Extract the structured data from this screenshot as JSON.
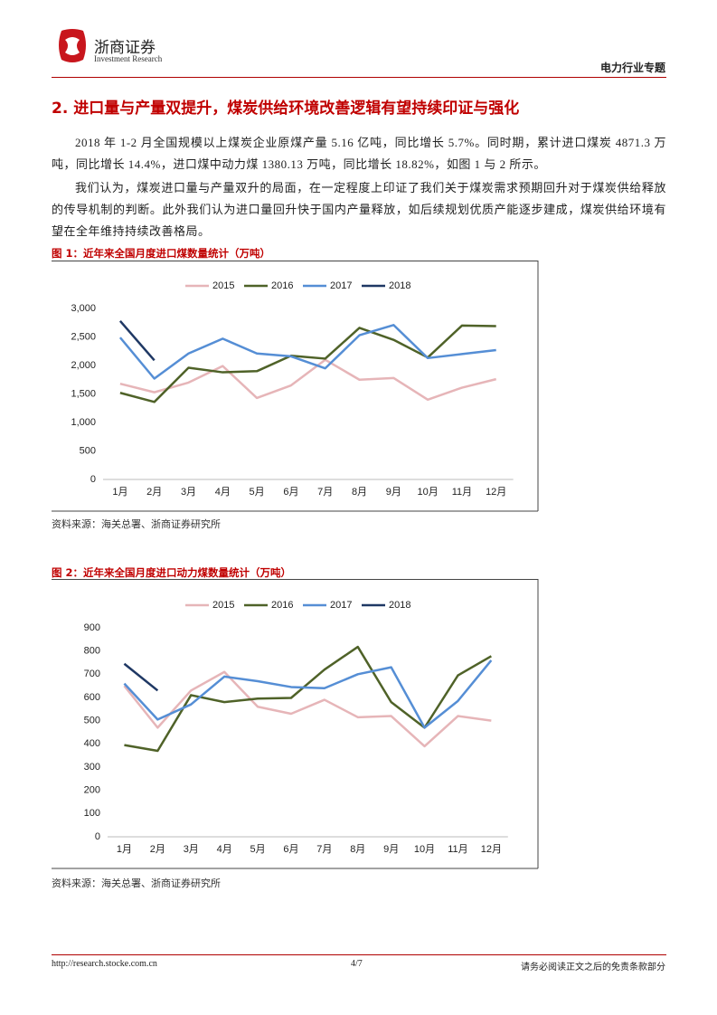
{
  "header": {
    "brand": "浙商证券",
    "brand_en": "Investment Research",
    "report_type": "电力行业专题"
  },
  "section_title": "2. 进口量与产量双提升，煤炭供给环境改善逻辑有望持续印证与强化",
  "paragraphs": [
    "2018 年 1-2 月全国规模以上煤炭企业原煤产量 5.16 亿吨，同比增长 5.7%。同时期，累计进口煤炭 4871.3 万吨，同比增长 14.4%，进口煤中动力煤 1380.13 万吨，同比增长 18.82%，如图 1 与 2 所示。",
    "我们认为，煤炭进口量与产量双升的局面，在一定程度上印证了我们关于煤炭需求预期回升对于煤炭供给释放的传导机制的判断。此外我们认为进口量回升快于国内产量释放，如后续规划优质产能逐步建成，煤炭供给环境有望在全年维持持续改善格局。"
  ],
  "chart_data": [
    {
      "type": "line",
      "title": "图 1：近年来全国月度进口煤数量统计（万吨）",
      "source": "资料来源：海关总署、浙商证券研究所",
      "categories": [
        "1月",
        "2月",
        "3月",
        "4月",
        "5月",
        "6月",
        "7月",
        "8月",
        "9月",
        "10月",
        "11月",
        "12月"
      ],
      "series": [
        {
          "name": "2015",
          "color": "#e6b5b8",
          "values": [
            1680,
            1530,
            1700,
            1990,
            1430,
            1650,
            2100,
            1750,
            1780,
            1400,
            1610,
            1760
          ]
        },
        {
          "name": "2016",
          "color": "#4f6228",
          "values": [
            1520,
            1360,
            1960,
            1880,
            1900,
            2170,
            2120,
            2660,
            2450,
            2140,
            2700,
            2690
          ]
        },
        {
          "name": "2017",
          "color": "#558ed5",
          "values": [
            2490,
            1770,
            2210,
            2470,
            2210,
            2160,
            1950,
            2530,
            2710,
            2130,
            2200,
            2270
          ]
        },
        {
          "name": "2018",
          "color": "#1f3864",
          "values": [
            2780,
            2090,
            null,
            null,
            null,
            null,
            null,
            null,
            null,
            null,
            null,
            null
          ]
        }
      ],
      "ylim": [
        0,
        3000
      ],
      "yticks": [
        0,
        500,
        {
          "value": 1000,
          "label": "1,000"
        },
        {
          "value": 1500,
          "label": "1,500"
        },
        {
          "value": 2000,
          "label": "2,000"
        },
        {
          "value": 2500,
          "label": "2,500"
        },
        {
          "value": 3000,
          "label": "3,000"
        }
      ],
      "legend": "top",
      "grid": false
    },
    {
      "type": "line",
      "title": "图 2：近年来全国月度进口动力煤数量统计（万吨）",
      "source": "资料来源：海关总署、浙商证券研究所",
      "categories": [
        "1月",
        "2月",
        "3月",
        "4月",
        "5月",
        "6月",
        "7月",
        "8月",
        "9月",
        "10月",
        "11月",
        "12月"
      ],
      "series": [
        {
          "name": "2015",
          "color": "#e6b5b8",
          "values": [
            650,
            470,
            630,
            710,
            560,
            530,
            590,
            515,
            520,
            390,
            520,
            500
          ]
        },
        {
          "name": "2016",
          "color": "#4f6228",
          "values": [
            395,
            370,
            610,
            580,
            595,
            598,
            720,
            818,
            580,
            470,
            695,
            778
          ]
        },
        {
          "name": "2017",
          "color": "#558ed5",
          "values": [
            660,
            505,
            570,
            690,
            670,
            645,
            640,
            700,
            730,
            470,
            585,
            760
          ]
        },
        {
          "name": "2018",
          "color": "#1f3864",
          "values": [
            745,
            630,
            null,
            null,
            null,
            null,
            null,
            null,
            null,
            null,
            null,
            null
          ]
        }
      ],
      "ylim": [
        0,
        900
      ],
      "yticks": [
        0,
        100,
        200,
        300,
        400,
        500,
        600,
        700,
        800,
        900
      ],
      "legend": "top",
      "grid": false
    }
  ],
  "footer": {
    "url": "http://research.stocke.com.cn",
    "page": "4/7",
    "disclaimer": "请务必阅读正文之后的免责条款部分"
  }
}
